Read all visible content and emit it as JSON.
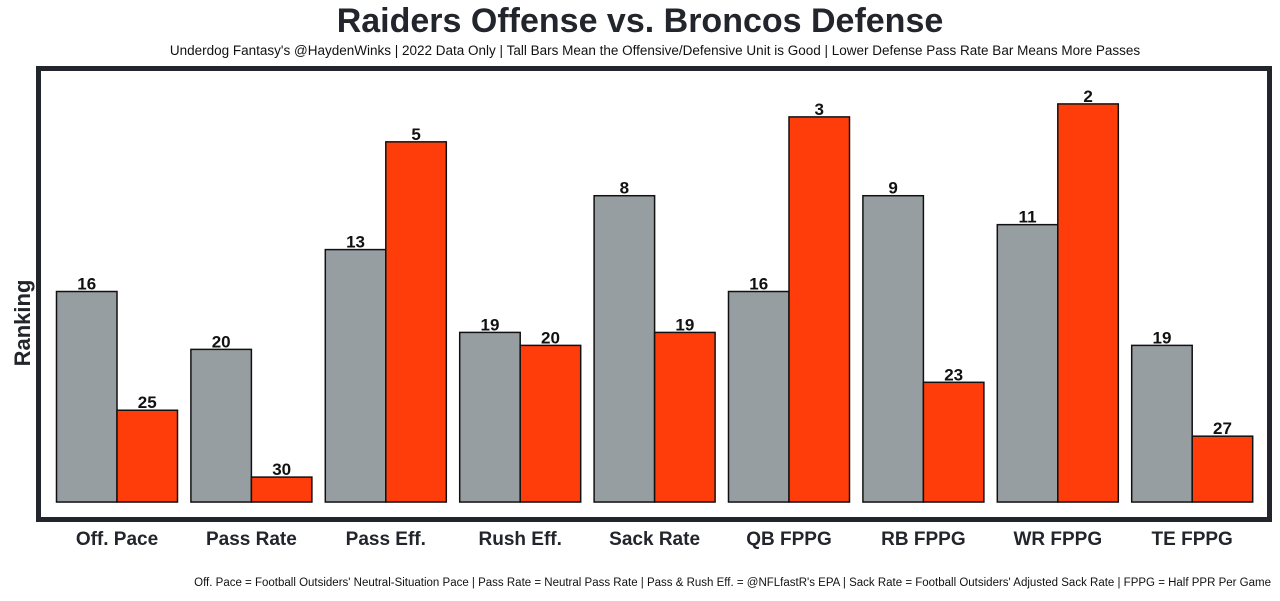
{
  "chart_data": {
    "type": "bar",
    "title": "Raiders Offense vs. Broncos Defense",
    "subtitle": "Underdog Fantasy's @HaydenWinks | 2022 Data Only | Tall Bars Mean the Offensive/Defensive Unit is Good | Lower Defense Pass Rate Bar Means More Passes",
    "ylabel": "Ranking",
    "xlabel": "",
    "footnote": "Off. Pace = Football Outsiders' Neutral-Situation Pace | Pass Rate = Neutral Pass Rate | Pass & Rush Eff. = @NFLfastR's EPA | Sack Rate = Football Outsiders' Adjusted Sack Rate | FPPG = Half PPR Per Game",
    "categories": [
      "Off. Pace",
      "Pass Rate",
      "Pass Eff.",
      "Rush Eff.",
      "Sack Rate",
      "QB FPPG",
      "RB FPPG",
      "WR FPPG",
      "TE FPPG"
    ],
    "ylim": [
      -4,
      108
    ],
    "grid": false,
    "series": [
      {
        "name": "Raiders Offense",
        "color": "#979ea1",
        "values": [
          52.75,
          38.25,
          63.25,
          42.5,
          76.75,
          52.75,
          76.75,
          69.5,
          39.25
        ],
        "labels": [
          "16",
          "20",
          "13",
          "19",
          "8",
          "16",
          "9",
          "11",
          "19"
        ]
      },
      {
        "name": "Broncos Defense",
        "color": "#ff3d0a",
        "values": [
          23,
          6.25,
          90.25,
          39.25,
          42.5,
          96.5,
          30,
          99.75,
          16.5
        ],
        "labels": [
          "25",
          "30",
          "5",
          "20",
          "19",
          "3",
          "23",
          "2",
          "27"
        ]
      }
    ]
  }
}
